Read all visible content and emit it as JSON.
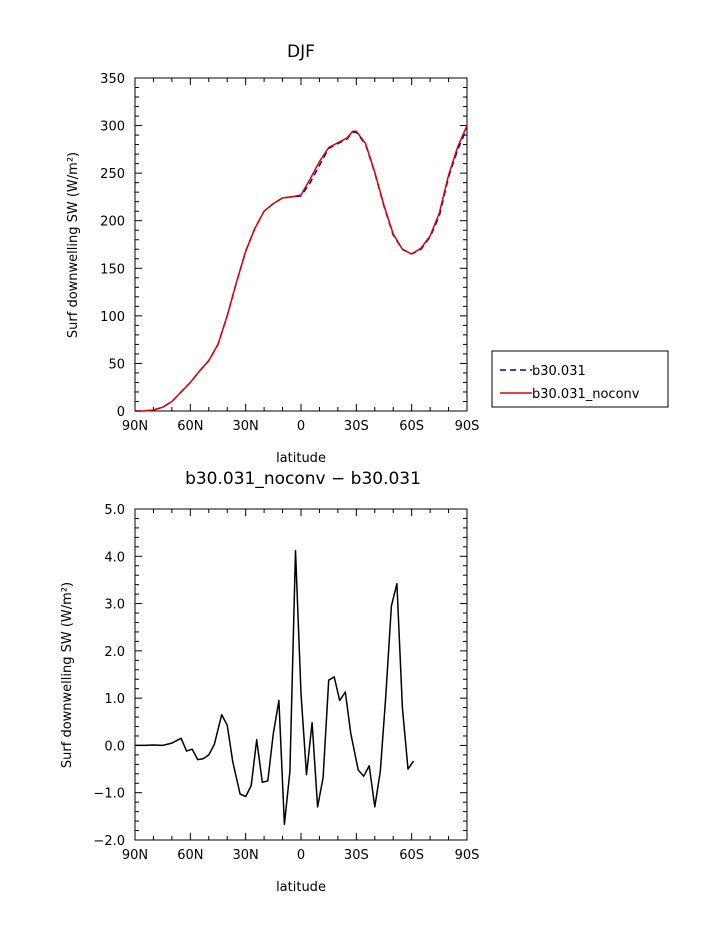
{
  "chart_data": [
    {
      "type": "line",
      "title": "DJF",
      "xlabel": "latitude",
      "ylabel": "Surf downwelling SW (W/m²)",
      "xlim": [
        90,
        -90
      ],
      "ylim": [
        0,
        350
      ],
      "x_tick_values": [
        90,
        60,
        30,
        0,
        -30,
        -60,
        -90
      ],
      "x_tick_labels": [
        "90N",
        "60N",
        "30N",
        "0",
        "30S",
        "60S",
        "90S"
      ],
      "y_tick_values": [
        0,
        50,
        100,
        150,
        200,
        250,
        300,
        350
      ],
      "y_tick_labels": [
        "0",
        "50",
        "100",
        "150",
        "200",
        "250",
        "300",
        "350"
      ],
      "legend_position": "right",
      "series": [
        {
          "name": "b30.031",
          "color": "#0000cc",
          "dash": "dashed",
          "x": [
            90,
            85,
            80,
            75,
            70,
            65,
            60,
            55,
            50,
            45,
            40,
            35,
            30,
            25,
            20,
            15,
            10,
            5,
            0,
            -5,
            -10,
            -15,
            -20,
            -25,
            -28,
            -30,
            -35,
            -40,
            -45,
            -50,
            -55,
            -60,
            -65,
            -70,
            -75,
            -80,
            -85,
            -90
          ],
          "values": [
            0,
            0,
            1,
            4,
            10,
            20,
            30,
            42,
            53,
            70,
            100,
            135,
            168,
            192,
            210,
            218,
            224,
            225,
            226,
            240,
            258,
            276,
            281,
            286,
            293,
            293,
            280,
            250,
            215,
            185,
            170,
            165,
            170,
            183,
            205,
            246,
            275,
            297
          ]
        },
        {
          "name": "b30.031_noconv",
          "color": "#dd0000",
          "dash": "solid",
          "x": [
            90,
            85,
            80,
            75,
            70,
            65,
            60,
            55,
            50,
            45,
            40,
            35,
            30,
            25,
            20,
            15,
            10,
            5,
            0,
            -5,
            -10,
            -15,
            -20,
            -25,
            -28,
            -30,
            -35,
            -40,
            -45,
            -50,
            -55,
            -60,
            -65,
            -70,
            -75,
            -80,
            -85,
            -90
          ],
          "values": [
            0,
            0,
            1,
            4,
            10,
            20,
            30,
            42,
            53,
            70,
            100,
            135,
            168,
            192,
            210,
            218,
            224,
            225,
            227,
            244,
            262,
            277,
            282,
            287,
            294,
            294,
            281,
            251,
            216,
            186,
            170,
            165,
            171,
            184,
            208,
            248,
            278,
            300
          ]
        }
      ]
    },
    {
      "type": "line",
      "title": "b30.031_noconv − b30.031",
      "xlabel": "latitude",
      "ylabel": "Surf downwelling SW (W/m²)",
      "xlim": [
        90,
        -90
      ],
      "ylim": [
        -2.0,
        5.0
      ],
      "x_tick_values": [
        90,
        60,
        30,
        0,
        -30,
        -60,
        -90
      ],
      "x_tick_labels": [
        "90N",
        "60N",
        "30N",
        "0",
        "30S",
        "60S",
        "90S"
      ],
      "y_tick_values": [
        -2.0,
        -1.0,
        0.0,
        1.0,
        2.0,
        3.0,
        4.0,
        5.0
      ],
      "y_tick_labels": [
        "−2.0",
        "−1.0",
        "0.0",
        "1.0",
        "2.0",
        "3.0",
        "4.0",
        "5.0"
      ],
      "series": [
        {
          "color": "#000000",
          "dash": "solid",
          "x": [
            90,
            85,
            80,
            75,
            70,
            65,
            62,
            59,
            56,
            53,
            50,
            47,
            43,
            40,
            37,
            33,
            30,
            27,
            24,
            21,
            18,
            15,
            12,
            9,
            6,
            3,
            0,
            -3,
            -6,
            -9,
            -12,
            -15,
            -18,
            -21,
            -24,
            -27,
            -31,
            -34,
            -37,
            -40,
            -43,
            -46,
            -49,
            -52,
            -55,
            -58,
            -61,
            -64,
            -67,
            -70,
            -73,
            -76,
            -79,
            -83,
            -86
          ],
          "values": [
            0.0,
            0.0,
            0.01,
            0.0,
            0.05,
            0.15,
            -0.12,
            -0.08,
            -0.3,
            -0.28,
            -0.2,
            0.02,
            0.65,
            0.43,
            -0.35,
            -1.03,
            -1.08,
            -0.85,
            0.12,
            -0.78,
            -0.75,
            0.25,
            0.95,
            -1.67,
            -0.55,
            4.12,
            1.1,
            -0.62,
            0.48,
            -1.3,
            -0.68,
            1.38,
            1.45,
            0.95,
            1.13,
            0.25,
            -0.52,
            -0.65,
            -0.43,
            -1.3,
            -0.55,
            1.05,
            2.95,
            3.42,
            0.8,
            -0.5,
            -0.33,
            null,
            null,
            null,
            null,
            null,
            null,
            null,
            null
          ]
        }
      ]
    }
  ],
  "legend": {
    "items": [
      "b30.031",
      "b30.031_noconv"
    ]
  }
}
